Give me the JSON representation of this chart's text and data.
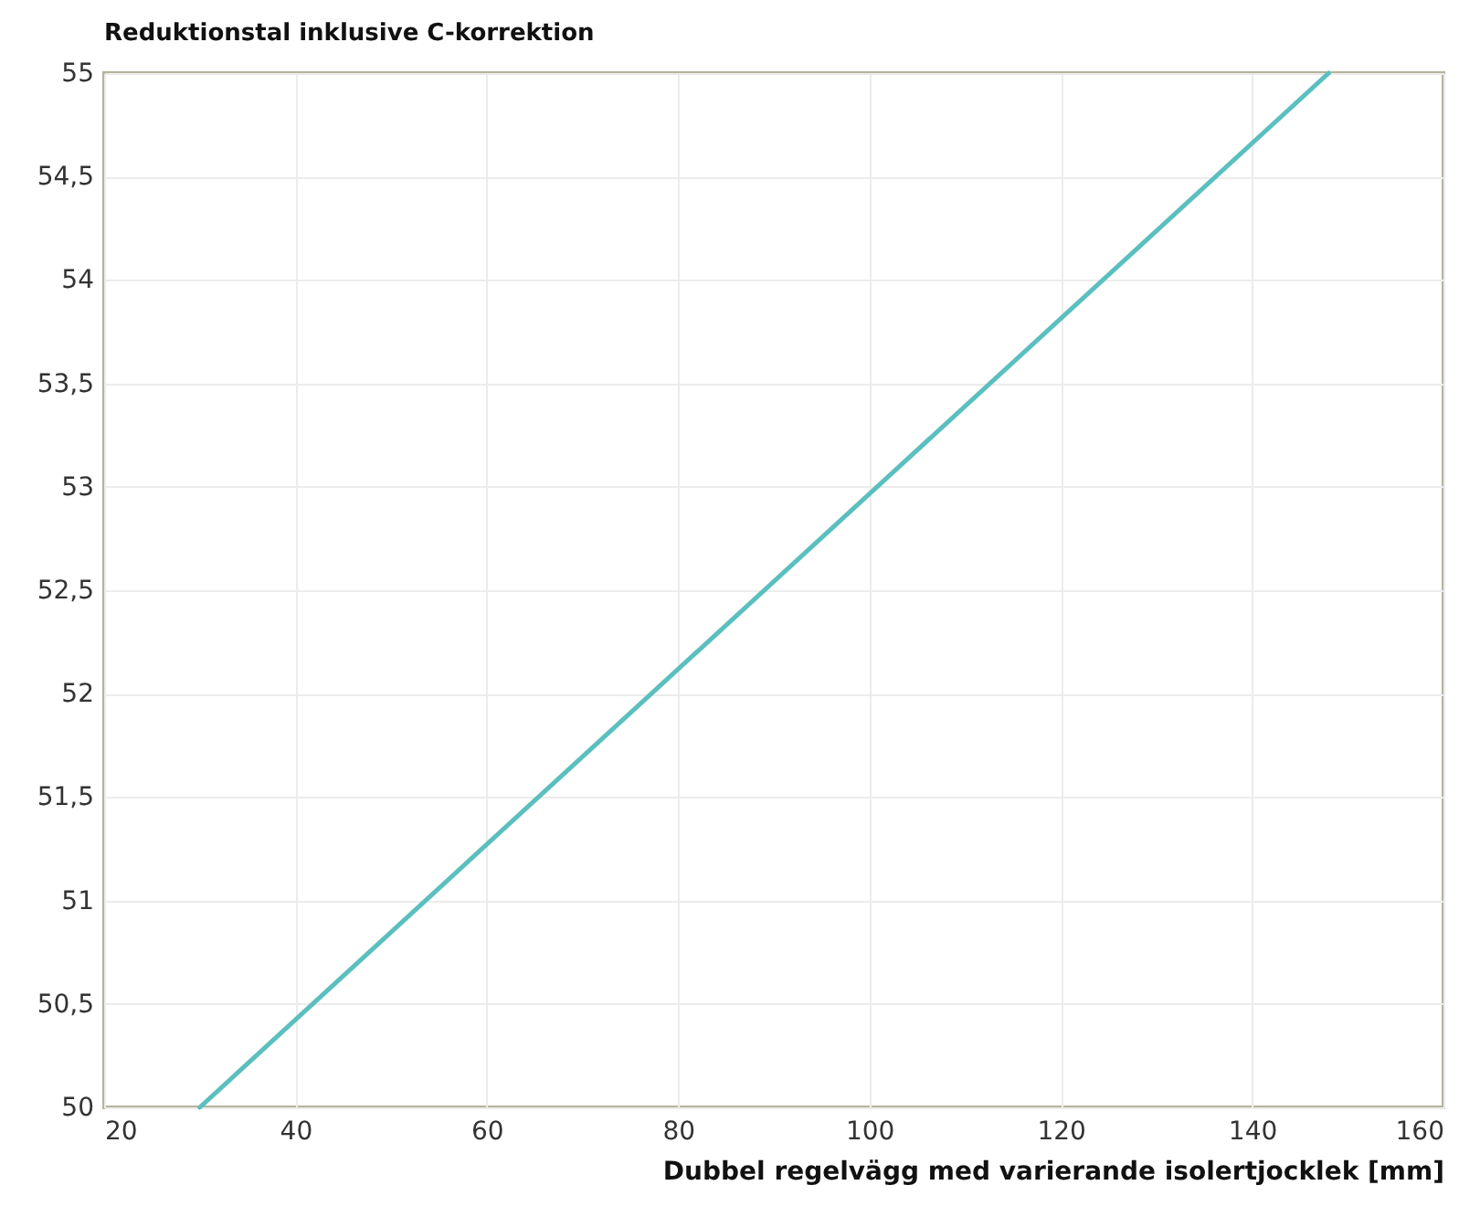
{
  "chart_data": {
    "type": "line",
    "title": "Reduktionstal inklusive C-korrektion",
    "xlabel": "Dubbel regelvägg med varierande isolertjocklek [mm]",
    "x": [
      30,
      148
    ],
    "series": [
      {
        "color": "#5bbfbf",
        "values": [
          50,
          55
        ]
      }
    ],
    "xlim": [
      20,
      160
    ],
    "xticks": [
      20,
      40,
      60,
      80,
      100,
      120,
      140,
      160
    ],
    "ylim": [
      50,
      55
    ],
    "yticks": [
      50,
      {
        "value": 50.5,
        "label": "50,5"
      },
      51,
      {
        "value": 51.5,
        "label": "51,5"
      },
      52,
      {
        "value": 52.5,
        "label": "52,5"
      },
      53,
      {
        "value": 53.5,
        "label": "53,5"
      },
      54,
      {
        "value": 54.5,
        "label": "54,5"
      },
      55
    ],
    "grid": true,
    "marker": "none",
    "line_style": "solid"
  }
}
